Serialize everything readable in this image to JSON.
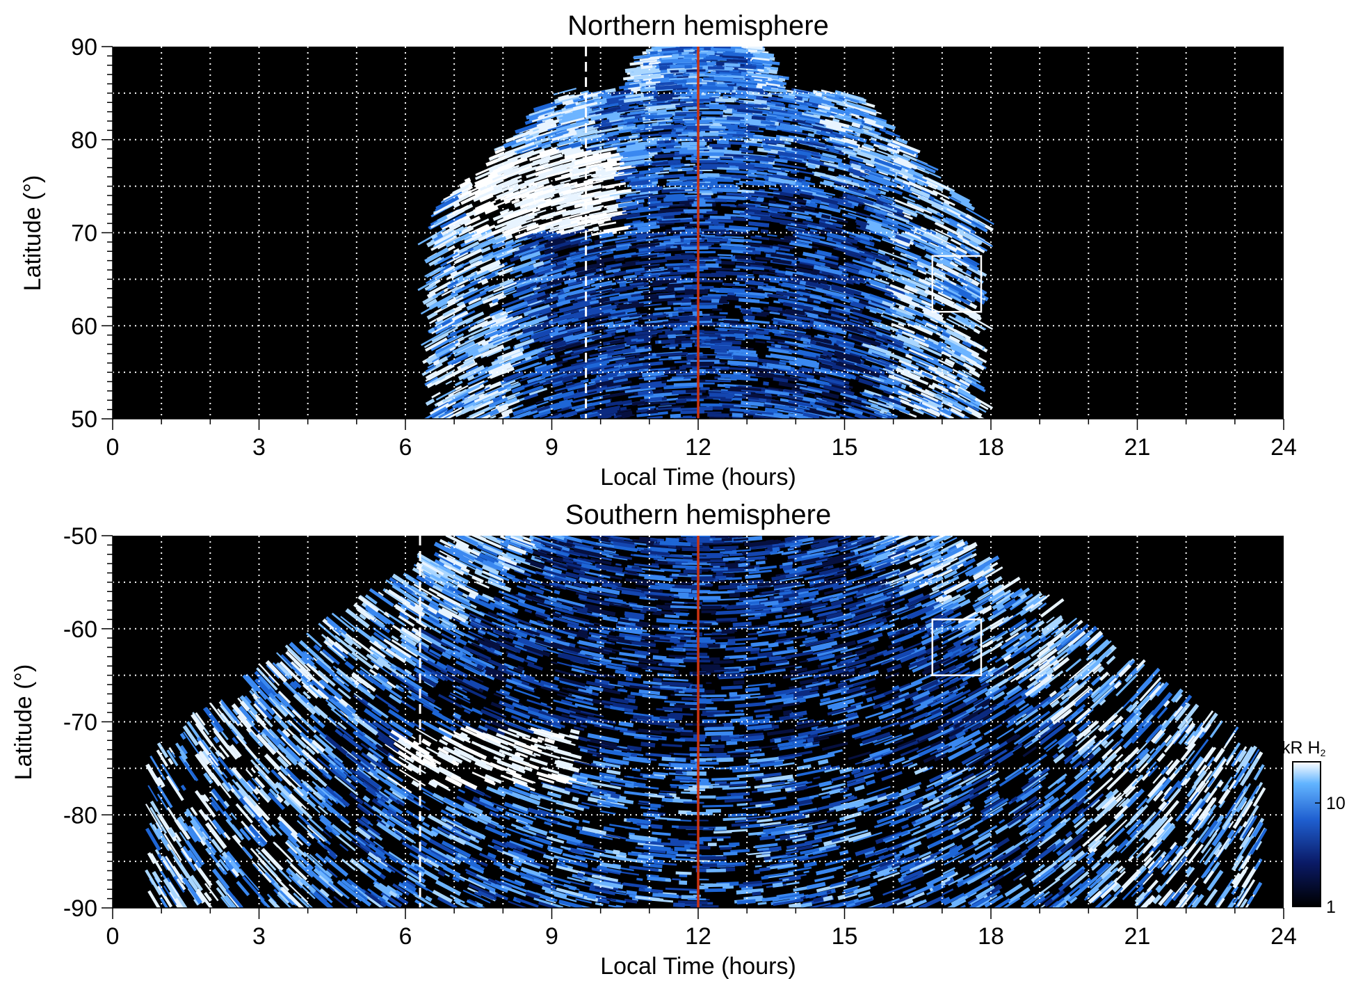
{
  "chart_data": [
    {
      "type": "heatmap",
      "title": "Northern hemisphere",
      "xlabel": "Local Time (hours)",
      "ylabel": "Latitude (°)",
      "xlim": [
        0,
        24
      ],
      "ylim": [
        50,
        90
      ],
      "xticks": [
        "0",
        "3",
        "6",
        "9",
        "12",
        "15",
        "18",
        "21",
        "24"
      ],
      "yticks": [
        "50",
        "60",
        "70",
        "80",
        "90"
      ],
      "grid": true,
      "coverage_lt": [
        6.5,
        17.8
      ],
      "bright_region": {
        "lt": [
          7,
          10.5
        ],
        "lat": [
          70,
          79
        ]
      },
      "lines": [
        {
          "style": "dashed",
          "color": "#ffffff",
          "lt": 9.7
        },
        {
          "style": "solid",
          "color": "#cc3311",
          "lt": 12
        }
      ],
      "box": {
        "lt": [
          16.8,
          17.8
        ],
        "lat": [
          61.5,
          67.5
        ]
      }
    },
    {
      "type": "heatmap",
      "title": "Southern hemisphere",
      "xlabel": "Local Time (hours)",
      "ylabel": "Latitude (°)",
      "xlim": [
        0,
        24
      ],
      "ylim": [
        -90,
        -50
      ],
      "xticks": [
        "0",
        "3",
        "6",
        "9",
        "12",
        "15",
        "18",
        "21",
        "24"
      ],
      "yticks": [
        "-50",
        "-60",
        "-70",
        "-80",
        "-90"
      ],
      "grid": true,
      "coverage_lt": [
        0.8,
        23.5
      ],
      "bright_region": {
        "lt": [
          5.8,
          9.5
        ],
        "lat": [
          -77,
          -71
        ]
      },
      "lines": [
        {
          "style": "dashed",
          "color": "#ffffff",
          "lt": 6.3
        },
        {
          "style": "solid",
          "color": "#cc3311",
          "lt": 12
        }
      ],
      "box": {
        "lt": [
          16.8,
          17.8
        ],
        "lat": [
          -65,
          -59
        ]
      }
    }
  ],
  "colorbar": {
    "unit": "kR H",
    "unit_subscript": "2",
    "ticks": [
      "1",
      "10"
    ],
    "scale": "log",
    "colors": [
      "#000000",
      "#0a1a66",
      "#1f5fd0",
      "#62b4ff",
      "#ffffff"
    ]
  }
}
